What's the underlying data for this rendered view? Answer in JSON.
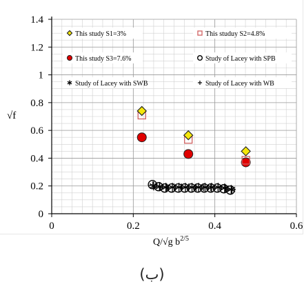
{
  "caption": "(ب)",
  "chart_data": {
    "type": "scatter",
    "xlabel": "Q/√g b",
    "xlabel_sup": "2/5",
    "ylabel": "√f",
    "xlim": [
      0,
      0.6
    ],
    "ylim": [
      0,
      1.4
    ],
    "x_ticks": [
      "0",
      "0.2",
      "0.4",
      "0.6"
    ],
    "x_tick_values": [
      0,
      0.2,
      0.4,
      0.6
    ],
    "y_ticks": [
      "0",
      "0.2",
      "0.4",
      "0.6",
      "0.8",
      "1",
      "1.2",
      "1.4"
    ],
    "y_tick_values": [
      0,
      0.2,
      0.4,
      0.6,
      0.8,
      1.0,
      1.2,
      1.4
    ],
    "grid": true,
    "legend_position": "top",
    "series": [
      {
        "name": "This study S1=3%",
        "marker": "diamond",
        "color": "#f5e60a",
        "points": [
          [
            0.221,
            0.74
          ],
          [
            0.335,
            0.565
          ],
          [
            0.476,
            0.45
          ]
        ]
      },
      {
        "name": "This studuy S2=4.8%",
        "marker": "square",
        "color": "#e08080",
        "points": [
          [
            0.221,
            0.71
          ],
          [
            0.335,
            0.535
          ],
          [
            0.476,
            0.385
          ]
        ]
      },
      {
        "name": "This study S3=7.6%",
        "marker": "circle-filled",
        "color": "#e00000",
        "points": [
          [
            0.221,
            0.55
          ],
          [
            0.335,
            0.43
          ],
          [
            0.476,
            0.37
          ]
        ]
      },
      {
        "name": "Study of Lacey with SPB",
        "marker": "circle-open",
        "color": "#000000",
        "points": [
          [
            0.247,
            0.21
          ],
          [
            0.262,
            0.195
          ],
          [
            0.277,
            0.185
          ],
          [
            0.294,
            0.185
          ],
          [
            0.31,
            0.185
          ],
          [
            0.326,
            0.185
          ],
          [
            0.342,
            0.185
          ],
          [
            0.358,
            0.185
          ],
          [
            0.374,
            0.185
          ],
          [
            0.39,
            0.185
          ],
          [
            0.406,
            0.185
          ],
          [
            0.422,
            0.18
          ],
          [
            0.438,
            0.17
          ]
        ]
      },
      {
        "name": "Study of Lacey with SWB",
        "marker": "star",
        "color": "#000000",
        "points": [
          [
            0.25,
            0.2
          ],
          [
            0.265,
            0.195
          ],
          [
            0.28,
            0.19
          ],
          [
            0.296,
            0.19
          ],
          [
            0.312,
            0.19
          ],
          [
            0.328,
            0.19
          ],
          [
            0.344,
            0.19
          ],
          [
            0.36,
            0.19
          ],
          [
            0.376,
            0.19
          ],
          [
            0.392,
            0.19
          ],
          [
            0.408,
            0.19
          ],
          [
            0.424,
            0.185
          ],
          [
            0.44,
            0.175
          ]
        ]
      },
      {
        "name": "Study of Lacey with WB",
        "marker": "plus",
        "color": "#000000",
        "points": [
          [
            0.248,
            0.205
          ],
          [
            0.264,
            0.195
          ],
          [
            0.282,
            0.19
          ],
          [
            0.3,
            0.19
          ],
          [
            0.318,
            0.19
          ],
          [
            0.336,
            0.19
          ],
          [
            0.354,
            0.19
          ],
          [
            0.372,
            0.19
          ],
          [
            0.39,
            0.19
          ],
          [
            0.408,
            0.19
          ],
          [
            0.426,
            0.185
          ],
          [
            0.442,
            0.175
          ]
        ]
      }
    ]
  }
}
